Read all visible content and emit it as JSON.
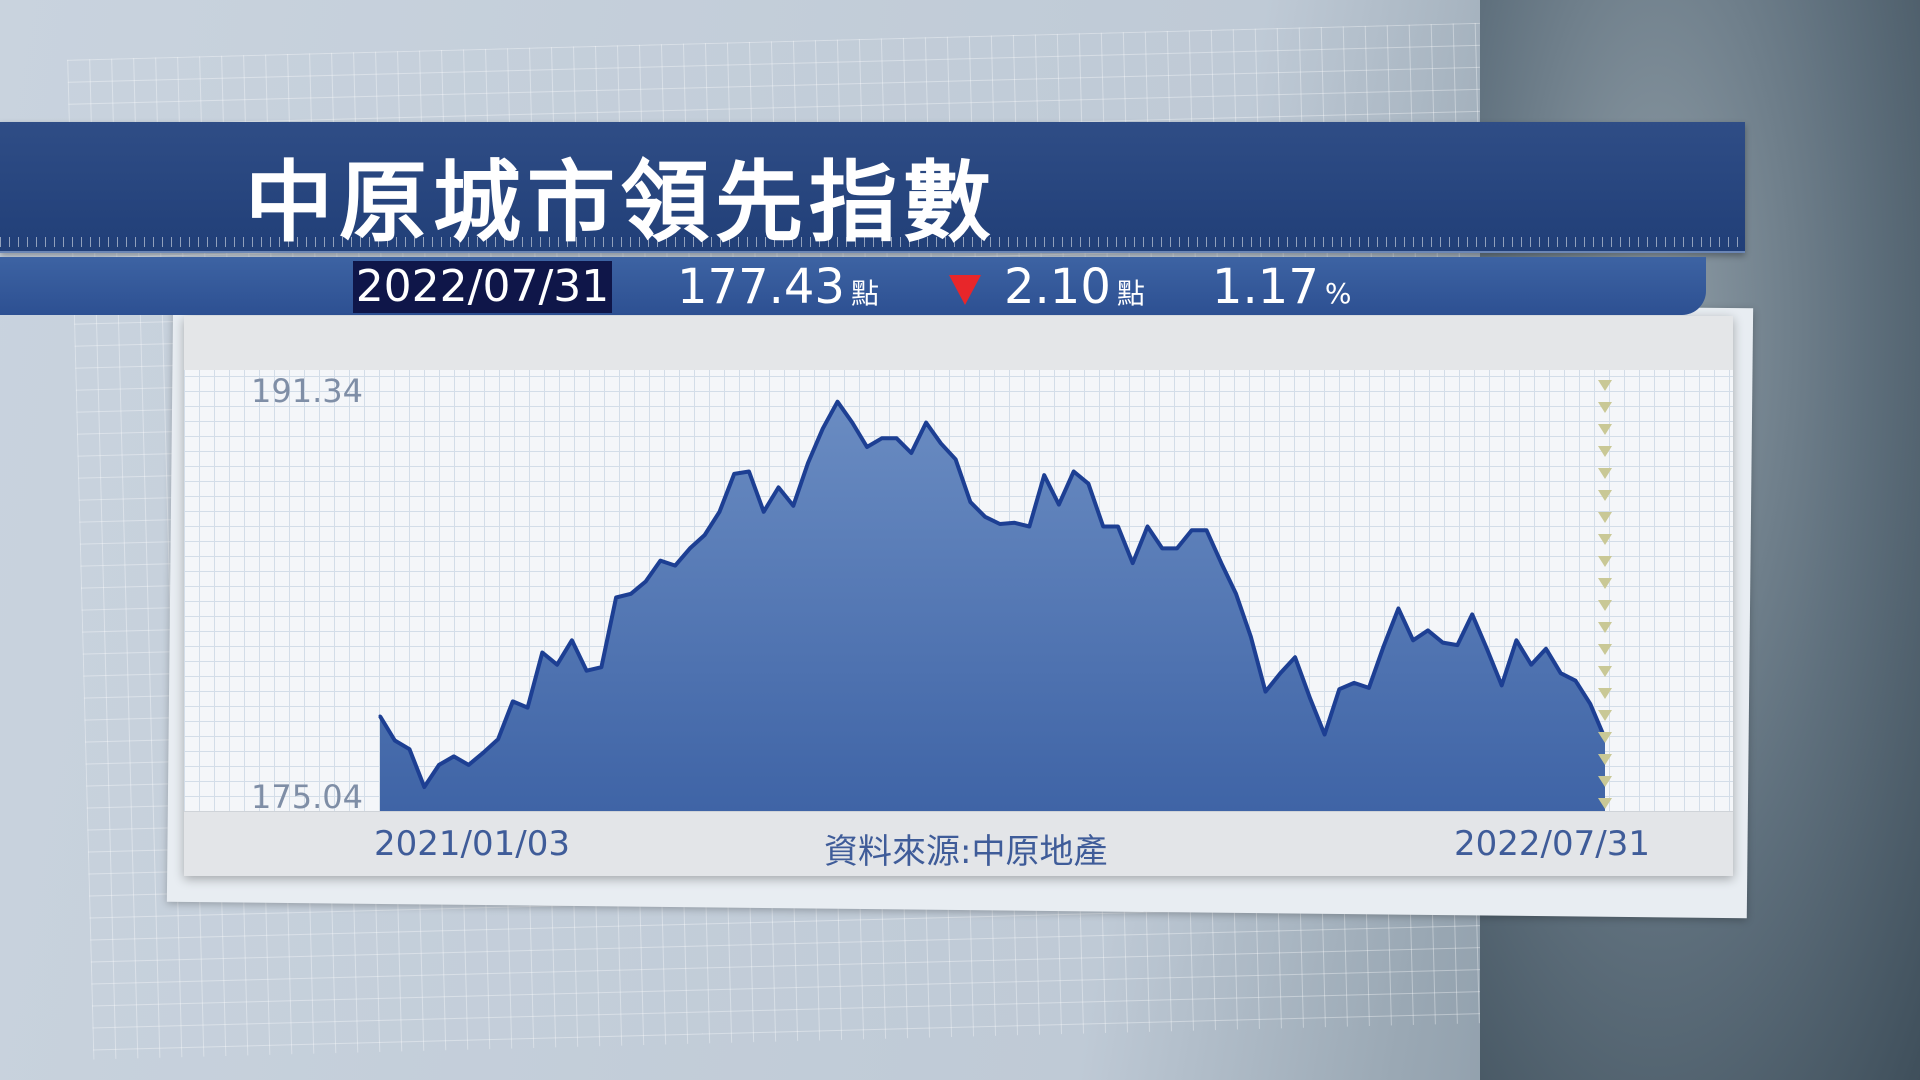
{
  "header": {
    "title": "中原城市領先指數"
  },
  "stats": {
    "date": "2022/07/31",
    "value": "177.43",
    "value_unit": "點",
    "change_direction": "down",
    "change": "2.10",
    "change_unit": "點",
    "percent": "1.17",
    "percent_unit": "%"
  },
  "colors": {
    "fill": "#4a6fae",
    "line": "#1d3f93",
    "down": "#e8262a",
    "header": "#25427c"
  },
  "footer": {
    "source": "資料來源:中原地產"
  },
  "chart_data": {
    "type": "area",
    "title": "中原城市領先指數",
    "x_start": "2021/01/03",
    "x_end": "2022/07/31",
    "x_tick_labels": [
      "2021/01/03",
      "2022/07/31"
    ],
    "y_tick_labels": [
      "191.34",
      "175.04"
    ],
    "ylim": [
      175.04,
      191.34
    ],
    "grid": true,
    "values": [
      178.33,
      177.35,
      177.0,
      175.48,
      176.37,
      176.71,
      176.37,
      176.86,
      177.4,
      178.92,
      178.67,
      180.88,
      180.39,
      181.37,
      180.15,
      180.29,
      183.09,
      183.24,
      183.73,
      184.57,
      184.37,
      185.06,
      185.6,
      186.53,
      188.05,
      188.15,
      186.53,
      187.51,
      186.77,
      188.49,
      189.87,
      190.95,
      190.11,
      189.13,
      189.48,
      189.48,
      188.89,
      190.11,
      189.28,
      188.64,
      186.92,
      186.33,
      186.04,
      186.09,
      185.94,
      188.0,
      186.82,
      188.15,
      187.66,
      185.94,
      185.94,
      184.47,
      185.94,
      185.06,
      185.06,
      185.79,
      185.79,
      184.47,
      183.24,
      181.52,
      179.31,
      180.05,
      180.69,
      179.07,
      177.59,
      179.41,
      179.66,
      179.46,
      181.13,
      182.65,
      181.37,
      181.77,
      181.28,
      181.18,
      182.41,
      181.03,
      179.56,
      181.37,
      180.39,
      181.03,
      180.05,
      179.75,
      178.82,
      177.43
    ]
  }
}
